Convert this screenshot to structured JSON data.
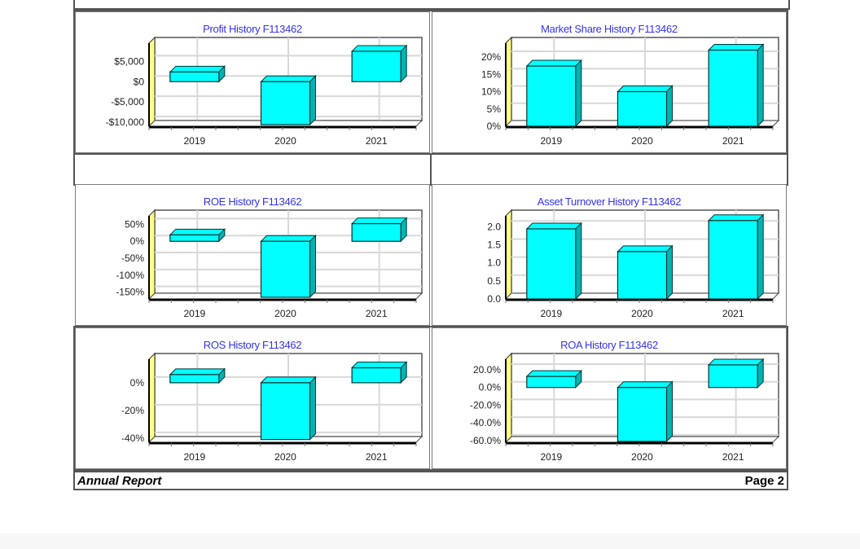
{
  "footer": {
    "left": "Annual Report",
    "right": "Page 2"
  },
  "colors": {
    "bar": "#00ffff",
    "bar_side": "#00b3b3",
    "title": "#3333ee",
    "wall": "#ffff88"
  },
  "chart_data": [
    {
      "type": "bar",
      "title": "Profit History F113462",
      "categories": [
        "2019",
        "2020",
        "2021"
      ],
      "values": [
        2400,
        -10600,
        7500
      ],
      "ylim": [
        -11000,
        9500
      ],
      "yticks": [
        5000,
        0,
        -5000,
        -10000
      ],
      "ytick_labels": [
        "$5,000",
        "$0",
        "-$5,000",
        "-$10,000"
      ],
      "grid": true
    },
    {
      "type": "bar",
      "title": "Market Share History F113462",
      "categories": [
        "2019",
        "2020",
        "2021"
      ],
      "values": [
        17.4,
        10.0,
        22.0
      ],
      "ylim": [
        0,
        24
      ],
      "yticks": [
        20,
        15,
        10,
        5,
        0
      ],
      "ytick_labels": [
        "20%",
        "15%",
        "10%",
        "5%",
        "0%"
      ],
      "grid": true
    },
    {
      "type": "bar",
      "title": "ROE History F113462",
      "categories": [
        "2019",
        "2020",
        "2021"
      ],
      "values": [
        19,
        -165,
        52
      ],
      "ylim": [
        -170,
        75
      ],
      "yticks": [
        50,
        0,
        -50,
        -100,
        -150
      ],
      "ytick_labels": [
        "50%",
        "0%",
        "-50%",
        "-100%",
        "-150%"
      ],
      "grid": true
    },
    {
      "type": "bar",
      "title": "Asset Turnover History F113462",
      "categories": [
        "2019",
        "2020",
        "2021"
      ],
      "values": [
        1.94,
        1.31,
        2.17
      ],
      "ylim": [
        0,
        2.3
      ],
      "yticks": [
        2.0,
        1.5,
        1.0,
        0.5,
        0.0
      ],
      "ytick_labels": [
        "2.0",
        "1.5",
        "1.0",
        "0.5",
        "0.0"
      ],
      "grid": true
    },
    {
      "type": "bar",
      "title": "ROS History F113462",
      "categories": [
        "2019",
        "2020",
        "2021"
      ],
      "values": [
        5.9,
        -41,
        10.8
      ],
      "ylim": [
        -43,
        17
      ],
      "yticks": [
        0,
        -20,
        -40
      ],
      "ytick_labels": [
        "0%",
        "-20%",
        "-40%"
      ],
      "grid": true
    },
    {
      "type": "bar",
      "title": "ROA History F113462",
      "categories": [
        "2019",
        "2020",
        "2021"
      ],
      "values": [
        12.5,
        -61,
        25.6
      ],
      "ylim": [
        -62,
        32
      ],
      "yticks": [
        20,
        0,
        -20,
        -40,
        -60
      ],
      "ytick_labels": [
        "20.0%",
        "0.0%",
        "-20.0%",
        "-40.0%",
        "-60.0%"
      ],
      "grid": true
    }
  ]
}
